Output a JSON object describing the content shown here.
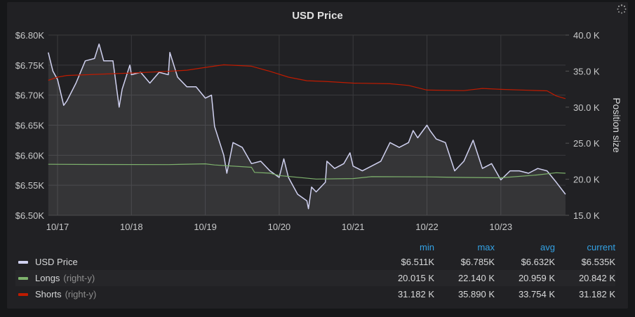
{
  "panel": {
    "title": "USD Price",
    "loading_icon": "spinner-icon"
  },
  "chart_data": {
    "type": "line",
    "title": "USD Price",
    "x_ticks": [
      "10/17",
      "10/18",
      "10/19",
      "10/20",
      "10/21",
      "10/22",
      "10/23"
    ],
    "x_range": [
      "10/16 21:00",
      "10/23 21:00"
    ],
    "y_left": {
      "ticks": [
        "$6.50K",
        "$6.55K",
        "$6.60K",
        "$6.65K",
        "$6.70K",
        "$6.75K",
        "$6.80K"
      ],
      "range": [
        6.5,
        6.8
      ],
      "unit": "$K"
    },
    "y_right": {
      "label": "Position size",
      "ticks": [
        "15.0 K",
        "20.0 K",
        "25.0 K",
        "30.0 K",
        "35.0 K",
        "40.0 K"
      ],
      "range": [
        15,
        40
      ],
      "unit": "K"
    },
    "grid": true,
    "legend_placement": "bottom",
    "series": [
      {
        "name": "USD Price",
        "axis": "left",
        "color": "#d0d1f0",
        "fill": true,
        "points": [
          [
            "10/16 21:00",
            6.771
          ],
          [
            "10/16 22:30",
            6.74
          ],
          [
            "10/17 00:00",
            6.726
          ],
          [
            "10/17 02:00",
            6.683
          ],
          [
            "10/17 03:00",
            6.69
          ],
          [
            "10/17 06:00",
            6.72
          ],
          [
            "10/17 09:00",
            6.757
          ],
          [
            "10/17 12:00",
            6.761
          ],
          [
            "10/17 13:30",
            6.785
          ],
          [
            "10/17 15:00",
            6.757
          ],
          [
            "10/17 18:00",
            6.757
          ],
          [
            "10/17 20:00",
            6.68
          ],
          [
            "10/17 21:00",
            6.71
          ],
          [
            "10/17 23:30",
            6.75
          ],
          [
            "10/18 00:00",
            6.734
          ],
          [
            "10/18 03:00",
            6.738
          ],
          [
            "10/18 06:00",
            6.72
          ],
          [
            "10/18 09:00",
            6.738
          ],
          [
            "10/18 12:00",
            6.734
          ],
          [
            "10/18 12:30",
            6.771
          ],
          [
            "10/18 15:00",
            6.73
          ],
          [
            "10/18 18:00",
            6.714
          ],
          [
            "10/18 21:00",
            6.714
          ],
          [
            "10/19 00:00",
            6.695
          ],
          [
            "10/19 02:00",
            6.7
          ],
          [
            "10/19 03:00",
            6.648
          ],
          [
            "10/19 06:00",
            6.6
          ],
          [
            "10/19 07:00",
            6.57
          ],
          [
            "10/19 09:00",
            6.621
          ],
          [
            "10/19 12:00",
            6.613
          ],
          [
            "10/19 15:00",
            6.586
          ],
          [
            "10/19 18:00",
            6.59
          ],
          [
            "10/19 21:00",
            6.574
          ],
          [
            "10/20 00:00",
            6.563
          ],
          [
            "10/20 01:30",
            6.594
          ],
          [
            "10/20 03:00",
            6.563
          ],
          [
            "10/20 06:00",
            6.535
          ],
          [
            "10/20 09:00",
            6.524
          ],
          [
            "10/20 09:30",
            6.511
          ],
          [
            "10/20 10:30",
            6.547
          ],
          [
            "10/20 12:00",
            6.539
          ],
          [
            "10/20 15:00",
            6.555
          ],
          [
            "10/20 15:30",
            6.59
          ],
          [
            "10/20 18:00",
            6.578
          ],
          [
            "10/20 21:00",
            6.586
          ],
          [
            "10/20 23:00",
            6.604
          ],
          [
            "10/21 00:00",
            6.582
          ],
          [
            "10/21 03:00",
            6.574
          ],
          [
            "10/21 06:00",
            6.582
          ],
          [
            "10/21 09:00",
            6.59
          ],
          [
            "10/21 12:00",
            6.621
          ],
          [
            "10/21 15:00",
            6.613
          ],
          [
            "10/21 18:00",
            6.621
          ],
          [
            "10/21 19:30",
            6.641
          ],
          [
            "10/21 21:00",
            6.629
          ],
          [
            "10/22 00:00",
            6.65
          ],
          [
            "10/22 01:00",
            6.641
          ],
          [
            "10/22 03:00",
            6.627
          ],
          [
            "10/22 06:00",
            6.621
          ],
          [
            "10/22 09:00",
            6.574
          ],
          [
            "10/22 12:00",
            6.59
          ],
          [
            "10/22 15:00",
            6.625
          ],
          [
            "10/22 18:00",
            6.578
          ],
          [
            "10/22 21:00",
            6.586
          ],
          [
            "10/23 00:00",
            6.559
          ],
          [
            "10/23 03:00",
            6.574
          ],
          [
            "10/23 06:00",
            6.574
          ],
          [
            "10/23 09:00",
            6.57
          ],
          [
            "10/23 12:00",
            6.578
          ],
          [
            "10/23 15:00",
            6.574
          ],
          [
            "10/23 18:00",
            6.555
          ],
          [
            "10/23 21:00",
            6.535
          ]
        ]
      },
      {
        "name": "Longs",
        "axis": "right",
        "color": "#7eb26d",
        "points": [
          [
            "10/16 21:00",
            22.08
          ],
          [
            "10/17 12:00",
            22.05
          ],
          [
            "10/18 12:00",
            22.03
          ],
          [
            "10/19 00:00",
            22.14
          ],
          [
            "10/19 03:00",
            21.98
          ],
          [
            "10/19 15:00",
            21.66
          ],
          [
            "10/19 16:00",
            20.95
          ],
          [
            "10/19 21:00",
            20.85
          ],
          [
            "10/20 00:00",
            20.52
          ],
          [
            "10/20 12:00",
            20.03
          ],
          [
            "10/21 00:00",
            20.1
          ],
          [
            "10/21 06:00",
            20.36
          ],
          [
            "10/22 00:00",
            20.33
          ],
          [
            "10/22 12:00",
            20.25
          ],
          [
            "10/23 00:00",
            20.2
          ],
          [
            "10/23 12:00",
            20.6
          ],
          [
            "10/23 18:00",
            20.9
          ],
          [
            "10/23 21:00",
            20.84
          ]
        ]
      },
      {
        "name": "Shorts",
        "axis": "right",
        "color": "#bf1b00",
        "points": [
          [
            "10/16 21:00",
            33.73
          ],
          [
            "10/17 00:00",
            34.16
          ],
          [
            "10/17 03:00",
            34.4
          ],
          [
            "10/18 00:00",
            34.74
          ],
          [
            "10/18 12:00",
            34.97
          ],
          [
            "10/18 18:00",
            35.13
          ],
          [
            "10/19 00:00",
            35.52
          ],
          [
            "10/19 06:00",
            35.88
          ],
          [
            "10/19 15:00",
            35.68
          ],
          [
            "10/19 21:00",
            34.97
          ],
          [
            "10/20 03:00",
            34.16
          ],
          [
            "10/20 09:00",
            33.67
          ],
          [
            "10/20 15:00",
            33.57
          ],
          [
            "10/21 00:00",
            33.34
          ],
          [
            "10/21 12:00",
            33.25
          ],
          [
            "10/21 18:00",
            33.02
          ],
          [
            "10/22 00:00",
            32.37
          ],
          [
            "10/22 12:00",
            32.3
          ],
          [
            "10/22 18:00",
            32.6
          ],
          [
            "10/23 00:00",
            32.47
          ],
          [
            "10/23 09:00",
            32.34
          ],
          [
            "10/23 15:00",
            32.27
          ],
          [
            "10/23 18:00",
            31.56
          ],
          [
            "10/23 21:00",
            31.18
          ]
        ]
      }
    ]
  },
  "legend": {
    "headers": [
      "min",
      "max",
      "avg",
      "current"
    ],
    "rows": [
      {
        "name": "USD Price",
        "axis_note": "",
        "color": "#d0d1f0",
        "values": [
          "$6.511K",
          "$6.785K",
          "$6.632K",
          "$6.535K"
        ]
      },
      {
        "name": "Longs",
        "axis_note": "(right-y)",
        "color": "#7eb26d",
        "values": [
          "20.015 K",
          "22.140 K",
          "20.959 K",
          "20.842 K"
        ]
      },
      {
        "name": "Shorts",
        "axis_note": "(right-y)",
        "color": "#bf1b00",
        "values": [
          "31.182 K",
          "35.890 K",
          "33.754 K",
          "31.182 K"
        ]
      }
    ]
  }
}
